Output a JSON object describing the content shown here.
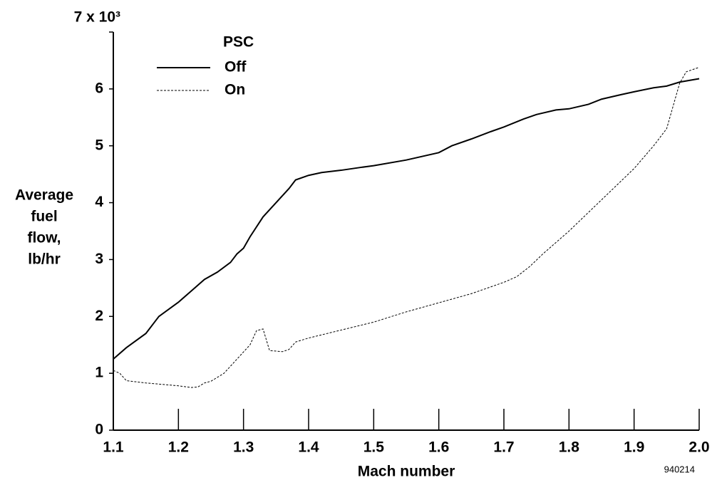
{
  "chart_data": {
    "type": "line",
    "ylabel": [
      "Average",
      "fuel",
      "flow,",
      "lb/hr"
    ],
    "xlabel": "Mach number",
    "note": "940214",
    "legend_title": "PSC",
    "xlim": [
      1.1,
      2.0
    ],
    "xticks": [
      1.1,
      1.2,
      1.3,
      1.4,
      1.5,
      1.6,
      1.7,
      1.8,
      1.9,
      {
        "value": 2.0,
        "label": "2.0"
      }
    ],
    "ylim": [
      0,
      7
    ],
    "yticks": [
      0,
      1,
      2,
      3,
      4,
      5,
      6,
      {
        "value": 7,
        "label": "7 x 10³"
      }
    ],
    "series": [
      {
        "name": "Off",
        "color": "#000000",
        "dash": false,
        "x": [
          1.1,
          1.12,
          1.15,
          1.17,
          1.2,
          1.22,
          1.24,
          1.26,
          1.28,
          1.29,
          1.3,
          1.31,
          1.33,
          1.35,
          1.37,
          1.38,
          1.4,
          1.42,
          1.45,
          1.48,
          1.5,
          1.55,
          1.6,
          1.62,
          1.65,
          1.68,
          1.7,
          1.73,
          1.75,
          1.78,
          1.8,
          1.83,
          1.85,
          1.88,
          1.9,
          1.93,
          1.95,
          1.97,
          2.0
        ],
        "values": [
          1.25,
          1.45,
          1.7,
          2.0,
          2.25,
          2.45,
          2.65,
          2.78,
          2.95,
          3.1,
          3.2,
          3.4,
          3.75,
          4.0,
          4.25,
          4.4,
          4.48,
          4.53,
          4.57,
          4.62,
          4.65,
          4.75,
          4.88,
          5.0,
          5.12,
          5.25,
          5.33,
          5.47,
          5.55,
          5.63,
          5.65,
          5.73,
          5.82,
          5.9,
          5.95,
          6.02,
          6.05,
          6.12,
          6.18
        ]
      },
      {
        "name": "On",
        "color": "#000000",
        "dash": true,
        "x": [
          1.1,
          1.11,
          1.12,
          1.15,
          1.2,
          1.22,
          1.23,
          1.24,
          1.25,
          1.27,
          1.29,
          1.31,
          1.32,
          1.33,
          1.34,
          1.36,
          1.37,
          1.38,
          1.4,
          1.45,
          1.5,
          1.55,
          1.6,
          1.65,
          1.7,
          1.72,
          1.74,
          1.76,
          1.8,
          1.85,
          1.9,
          1.93,
          1.95,
          1.96,
          1.97,
          1.98,
          2.0
        ],
        "values": [
          1.05,
          1.0,
          0.87,
          0.83,
          0.78,
          0.75,
          0.76,
          0.83,
          0.86,
          1.0,
          1.25,
          1.5,
          1.75,
          1.78,
          1.4,
          1.38,
          1.42,
          1.55,
          1.62,
          1.76,
          1.9,
          2.08,
          2.24,
          2.4,
          2.6,
          2.7,
          2.88,
          3.1,
          3.5,
          4.05,
          4.6,
          5.0,
          5.3,
          5.7,
          6.1,
          6.3,
          6.38
        ]
      }
    ]
  }
}
